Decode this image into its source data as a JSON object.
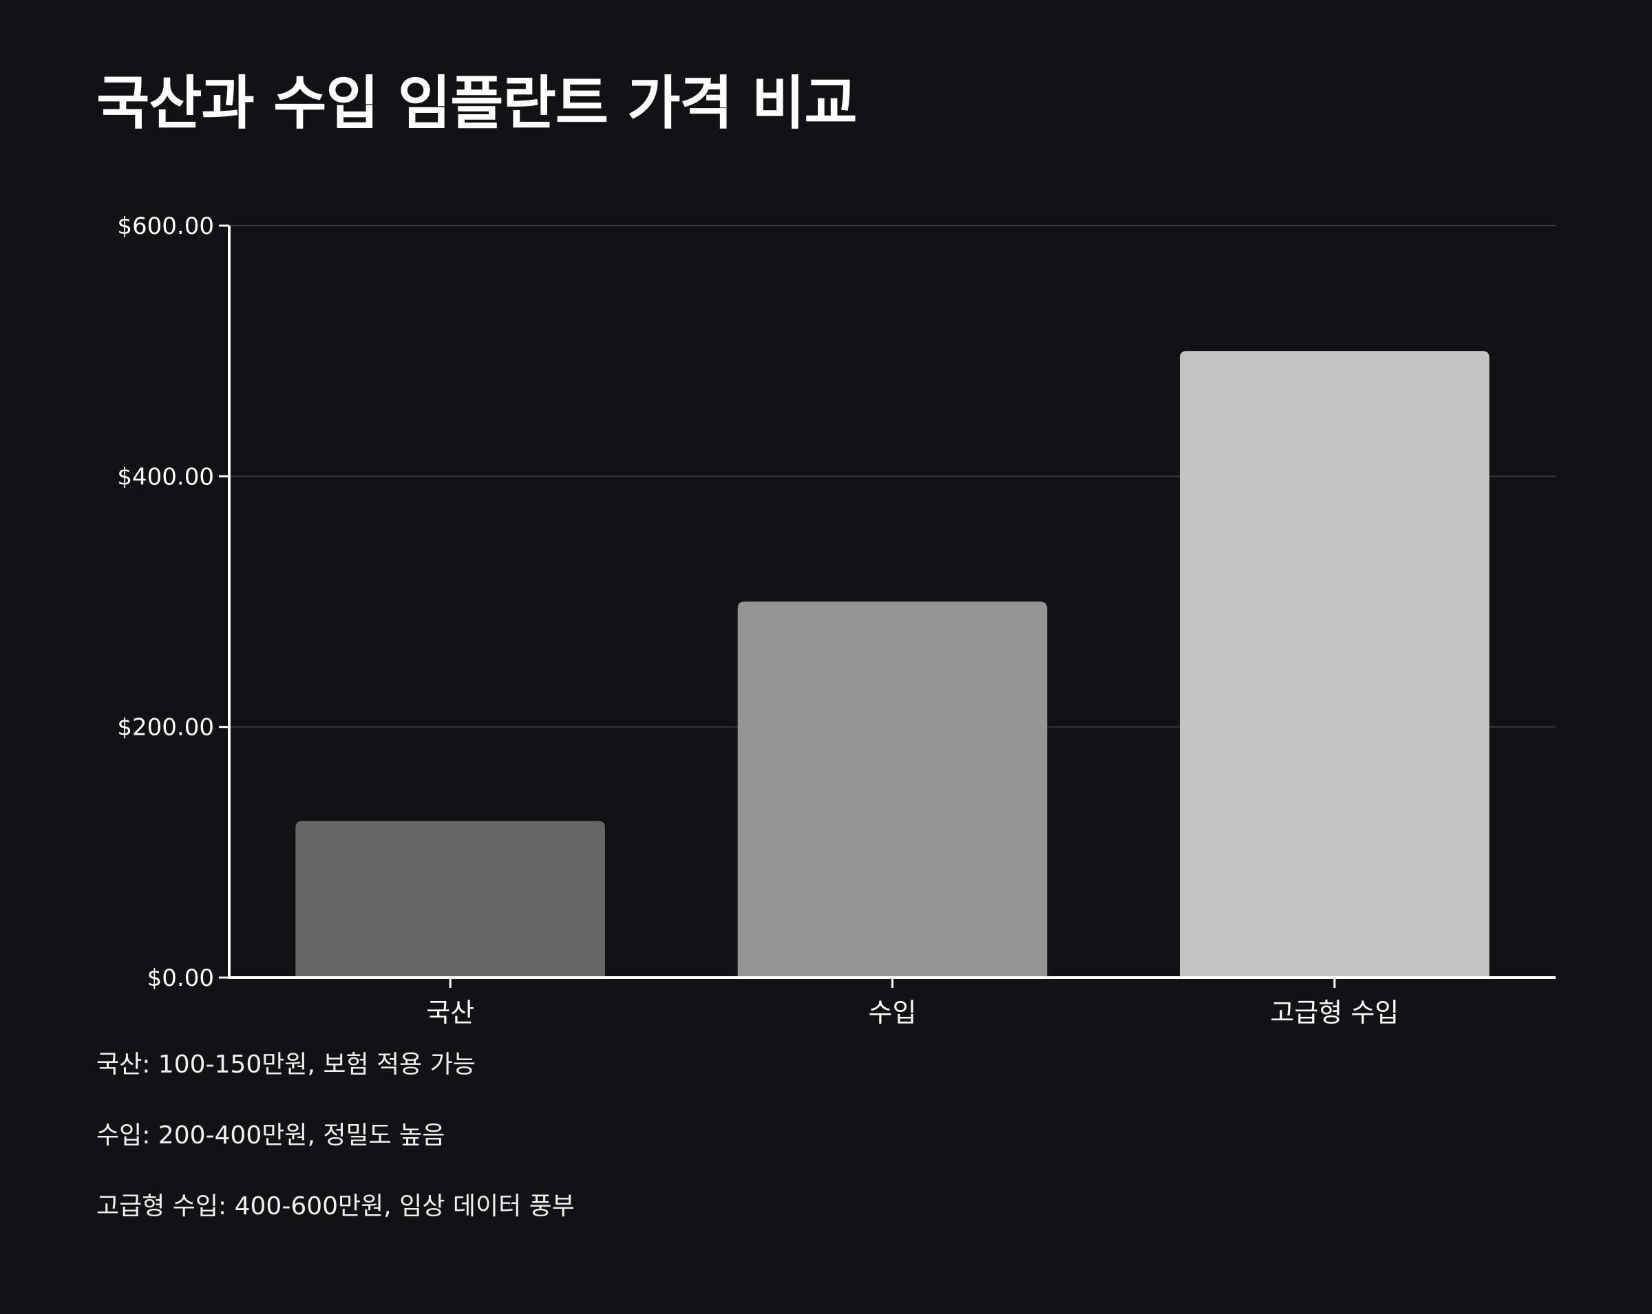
{
  "title": "국산과 수입 임플란트 가격 비교",
  "chart_data": {
    "type": "bar",
    "title": "국산과 수입 임플란트 가격 비교",
    "categories": [
      "국산",
      "수입",
      "고급형 수입"
    ],
    "values": [
      125,
      300,
      500
    ],
    "ylim": [
      0,
      600
    ],
    "yticks": [
      0,
      200,
      400,
      600
    ],
    "ytick_labels": [
      "$0.00",
      "$200.00",
      "$400.00",
      "$600.00"
    ],
    "xlabel": "",
    "ylabel": "",
    "grid": true,
    "legend": "none",
    "colors": [
      "#666666",
      "#949494",
      "#c4c4c4"
    ]
  },
  "notes": [
    "국산: 100-150만원, 보험 적용 가능",
    "수입: 200-400만원, 정밀도 높음",
    "고급형 수입: 400-600만원, 임상 데이터 풍부"
  ],
  "theme": {
    "background": "#111214",
    "gridline": "#3a3a3a",
    "axis": "#ffffff",
    "text": "#ffffff"
  }
}
